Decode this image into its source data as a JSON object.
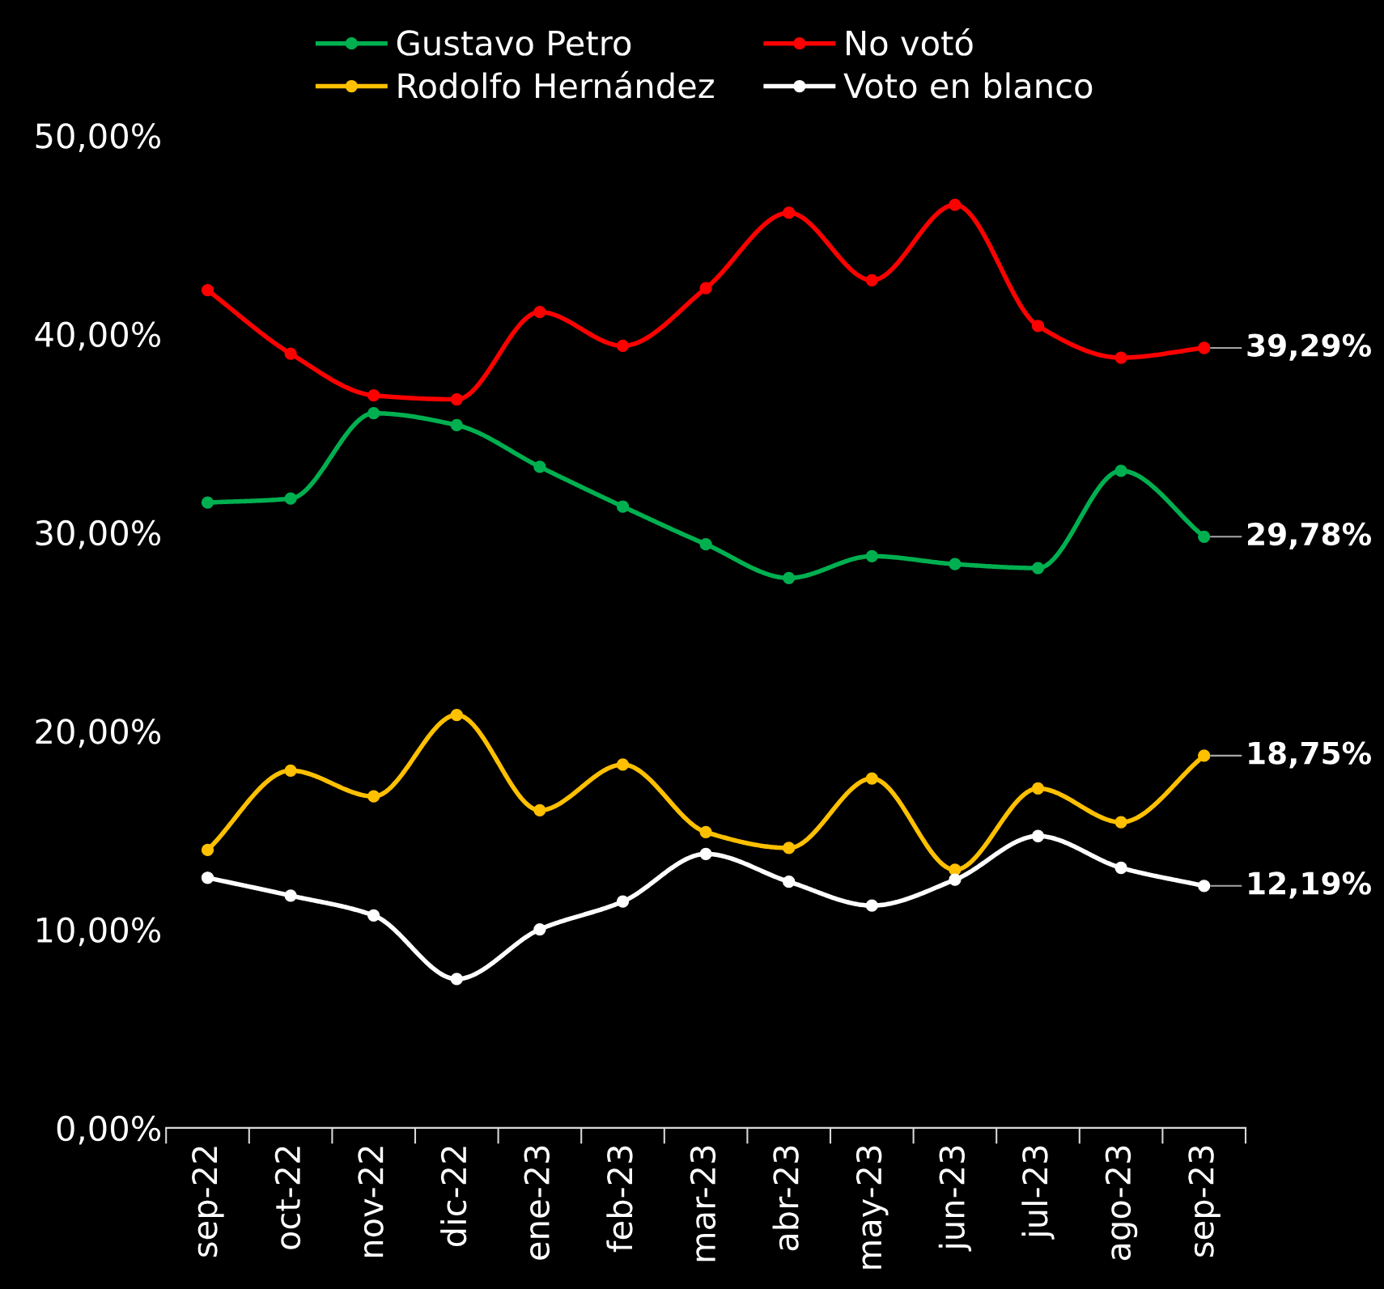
{
  "chart_data": {
    "type": "line",
    "categories": [
      "sep-22",
      "oct-22",
      "nov-22",
      "dic-22",
      "ene-23",
      "feb-23",
      "mar-23",
      "abr-23",
      "may-23",
      "jun-23",
      "jul-23",
      "ago-23",
      "sep-23"
    ],
    "series": [
      {
        "name": "Gustavo Petro",
        "color": "#00b050",
        "values": [
          31.5,
          31.7,
          36.0,
          35.4,
          33.3,
          31.3,
          29.4,
          27.7,
          28.8,
          28.4,
          28.2,
          33.1,
          29.78
        ],
        "value_labels": [
          null,
          null,
          null,
          null,
          null,
          null,
          null,
          null,
          null,
          null,
          null,
          null,
          "29,78%"
        ]
      },
      {
        "name": "No votó",
        "color": "#ff0000",
        "values": [
          42.2,
          39.0,
          36.9,
          36.7,
          41.1,
          39.4,
          42.3,
          46.1,
          42.7,
          46.5,
          40.4,
          38.8,
          39.29
        ],
        "value_labels": [
          null,
          null,
          null,
          null,
          null,
          null,
          null,
          null,
          null,
          null,
          null,
          null,
          "39,29%"
        ]
      },
      {
        "name": "Rodolfo Hernández",
        "color": "#ffc000",
        "values": [
          14.0,
          18.0,
          16.7,
          20.8,
          16.0,
          18.3,
          14.9,
          14.1,
          17.6,
          13.0,
          17.1,
          15.4,
          18.75
        ],
        "value_labels": [
          null,
          null,
          null,
          null,
          null,
          null,
          null,
          null,
          null,
          null,
          null,
          null,
          "18,75%"
        ]
      },
      {
        "name": "Voto en blanco",
        "color": "#ffffff",
        "values": [
          12.6,
          11.7,
          10.7,
          7.5,
          10.0,
          11.4,
          13.8,
          12.4,
          11.2,
          12.5,
          14.7,
          13.1,
          12.19
        ],
        "value_labels": [
          null,
          null,
          null,
          null,
          null,
          null,
          null,
          null,
          null,
          null,
          null,
          null,
          "12,19%"
        ]
      }
    ],
    "ylim": [
      0,
      50
    ],
    "yticks": [
      {
        "value": 0,
        "label": "0,00%"
      },
      {
        "value": 10,
        "label": "10,00%"
      },
      {
        "value": 20,
        "label": "20,00%"
      },
      {
        "value": 30,
        "label": "30,00%"
      },
      {
        "value": 40,
        "label": "40,00%"
      },
      {
        "value": 50,
        "label": "50,00%"
      }
    ],
    "grid": false,
    "legend": "top",
    "marker": "circle",
    "line_style": "solid"
  }
}
